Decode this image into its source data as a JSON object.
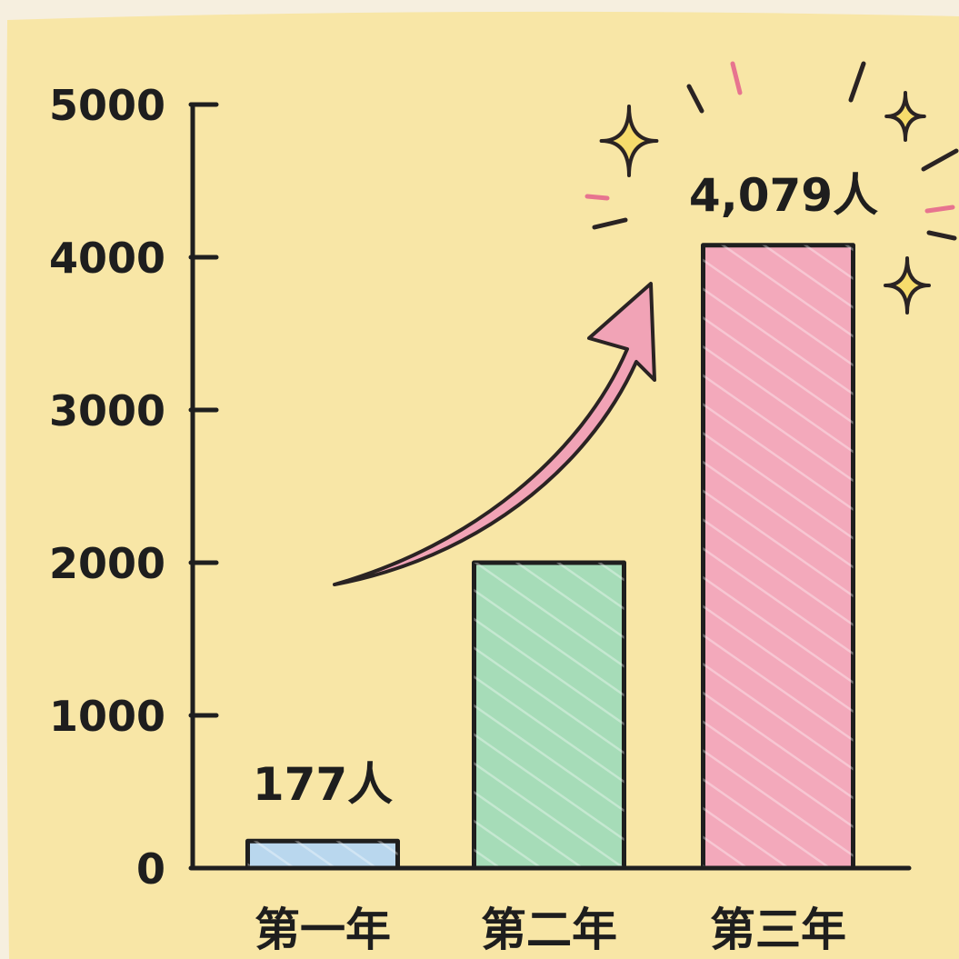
{
  "chart_data": {
    "type": "bar",
    "title": "",
    "xlabel": "",
    "ylabel": "",
    "categories": [
      "第一年",
      "第二年",
      "第三年"
    ],
    "values": [
      177,
      2000,
      4079
    ],
    "data_labels": [
      "177人",
      "",
      "4,079人"
    ],
    "ylim": [
      0,
      5000
    ],
    "yticks": [
      "0",
      "1000",
      "2000",
      "3000",
      "4000",
      "5000"
    ],
    "grid": false,
    "legend": "none",
    "bar_colors": [
      "#b9d7ee",
      "#a6dcb8",
      "#f3a9bb"
    ],
    "background": "#f8e6a6",
    "arrow_color": "#f1a3b6",
    "sparkle_color": "#f6dc6c"
  }
}
